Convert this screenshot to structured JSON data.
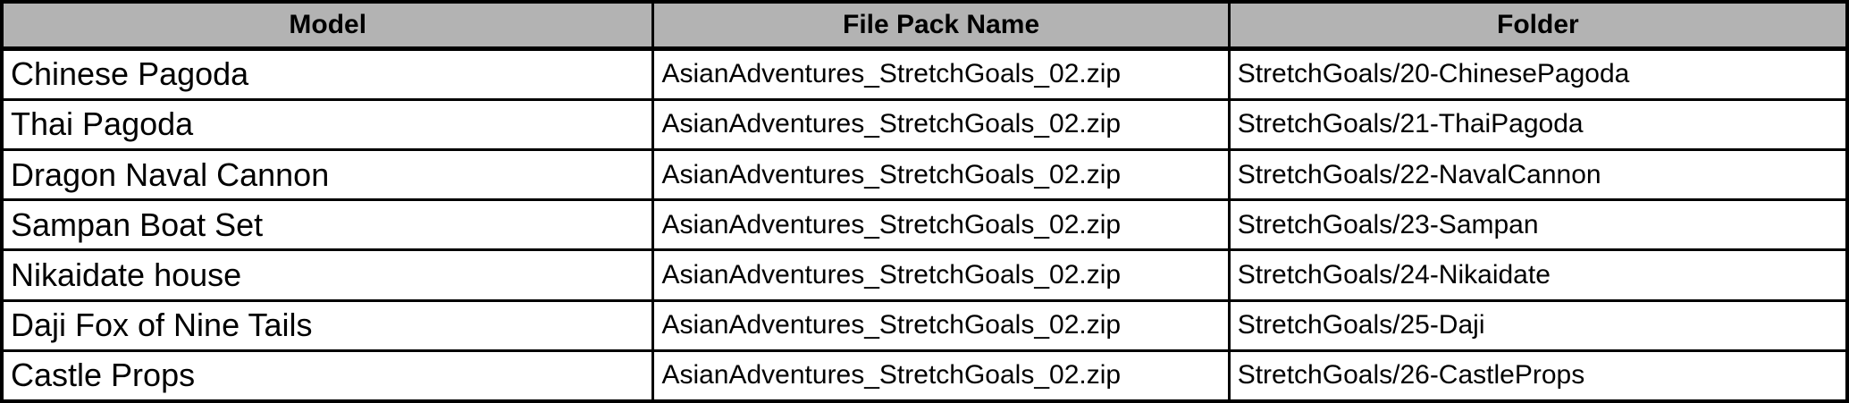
{
  "table": {
    "columns": [
      {
        "label": "Model"
      },
      {
        "label": "File Pack Name"
      },
      {
        "label": "Folder"
      }
    ],
    "rows": [
      {
        "model": "Chinese Pagoda",
        "file_pack": "AsianAdventures_StretchGoals_02.zip",
        "folder": "StretchGoals/20-ChinesePagoda"
      },
      {
        "model": "Thai Pagoda",
        "file_pack": "AsianAdventures_StretchGoals_02.zip",
        "folder": "StretchGoals/21-ThaiPagoda"
      },
      {
        "model": "Dragon Naval Cannon",
        "file_pack": "AsianAdventures_StretchGoals_02.zip",
        "folder": "StretchGoals/22-NavalCannon"
      },
      {
        "model": "Sampan Boat Set",
        "file_pack": "AsianAdventures_StretchGoals_02.zip",
        "folder": "StretchGoals/23-Sampan"
      },
      {
        "model": "Nikaidate house",
        "file_pack": "AsianAdventures_StretchGoals_02.zip",
        "folder": "StretchGoals/24-Nikaidate"
      },
      {
        "model": "Daji Fox of Nine Tails",
        "file_pack": "AsianAdventures_StretchGoals_02.zip",
        "folder": "StretchGoals/25-Daji"
      },
      {
        "model": "Castle Props",
        "file_pack": "AsianAdventures_StretchGoals_02.zip",
        "folder": "StretchGoals/26-CastleProps"
      }
    ]
  },
  "colors": {
    "header_bg": "#b3b3b3",
    "border": "#000000",
    "row_bg": "#ffffff",
    "text": "#000000"
  }
}
